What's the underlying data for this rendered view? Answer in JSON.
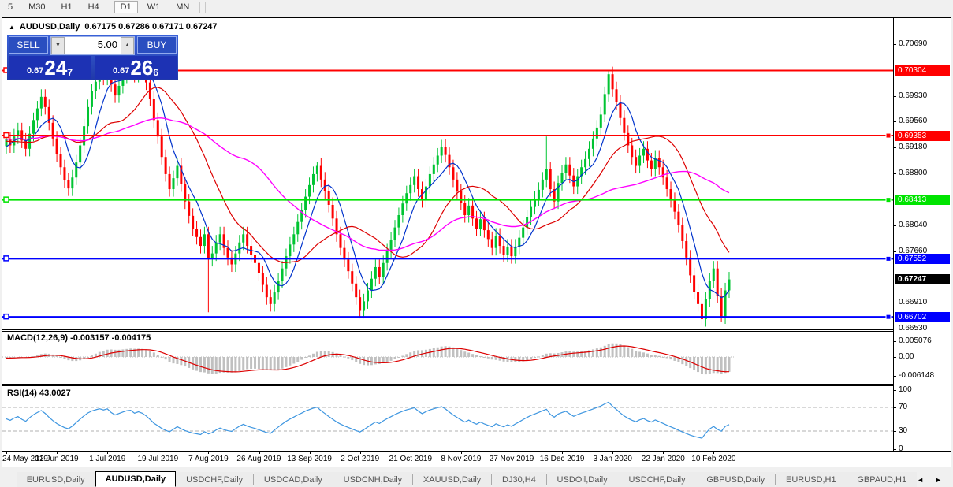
{
  "toolbar": {
    "timeframes": [
      "5",
      "M30",
      "H1",
      "H4",
      "D1",
      "W1",
      "MN"
    ],
    "active": "D1",
    "separators_after": [
      3,
      6
    ]
  },
  "chart": {
    "collapse_arrow": "▲",
    "symbol_title": "AUDUSD,Daily",
    "ohlc_text": "0.67175 0.67286 0.67171 0.67247"
  },
  "trade_panel": {
    "sell_label": "SELL",
    "buy_label": "BUY",
    "volume": "5.00",
    "spin_down_icon": "▼",
    "spin_up_icon": "▲",
    "sell_price": {
      "prefix": "0.67",
      "big": "24",
      "sup": "7"
    },
    "buy_price": {
      "prefix": "0.67",
      "big": "26",
      "sup": "6"
    }
  },
  "price_axis": {
    "ticks": [
      "0.70690",
      "0.69930",
      "0.69560",
      "0.69180",
      "0.68800",
      "0.68040",
      "0.67660",
      "0.66910",
      "0.66530"
    ],
    "current": {
      "price": 0.67247,
      "label": "0.67247",
      "bg": "#000000"
    }
  },
  "macd_panel": {
    "label": "MACD(12,26,9) -0.003157 -0.004175",
    "axis": [
      {
        "v": 0.005076,
        "label": "0.005076"
      },
      {
        "v": 0.0,
        "label": "0.00"
      },
      {
        "v": -0.006148,
        "label": "-0.006148"
      }
    ]
  },
  "rsi_panel": {
    "label": "RSI(14) 43.0027",
    "axis": [
      {
        "v": 100,
        "label": "100"
      },
      {
        "v": 70,
        "label": "70"
      },
      {
        "v": 30,
        "label": "30"
      },
      {
        "v": 0,
        "label": "0"
      }
    ],
    "dashed_levels": [
      70,
      30
    ]
  },
  "tabs": {
    "items": [
      "EURUSD,Daily",
      "AUDUSD,Daily",
      "USDCHF,Daily",
      "USDCAD,Daily",
      "USDCNH,Daily",
      "XAUUSD,Daily",
      "DJ30,H4",
      "USDOil,Daily",
      "USDCHF,Daily",
      "GBPUSD,Daily",
      "EURUSD,H1",
      "GBPAUD,H1"
    ],
    "active_index": 1,
    "scroll_left_icon": "◄",
    "scroll_right_icon": "►"
  },
  "colors": {
    "candle_up": "#00c432",
    "candle_down": "#ff0000",
    "ma_fast": "#0033cc",
    "ma_mid": "#dd0000",
    "ma_slow": "#ff00ff",
    "macd_bar": "#c0c0c0",
    "macd_signal": "#dd0000",
    "rsi_line": "#3e96e0",
    "level_red": "#ff0000",
    "level_green": "#00e400",
    "level_blue": "#0000ff"
  },
  "chart_data": {
    "type": "candlestick",
    "symbol": "AUDUSD",
    "timeframe": "Daily",
    "ohlc_readout": {
      "open": 0.67175,
      "high": 0.67286,
      "low": 0.67171,
      "close": 0.67247
    },
    "current_price": 0.67247,
    "x_axis_dates": [
      "24 May 2019",
      "12 Jun 2019",
      "1 Jul 2019",
      "19 Jul 2019",
      "7 Aug 2019",
      "26 Aug 2019",
      "13 Sep 2019",
      "2 Oct 2019",
      "21 Oct 2019",
      "8 Nov 2019",
      "27 Nov 2019",
      "16 Dec 2019",
      "3 Jan 2020",
      "22 Jan 2020",
      "10 Feb 2020"
    ],
    "y_axis_ticks": [
      0.7069,
      0.6993,
      0.6956,
      0.6918,
      0.688,
      0.6804,
      0.6766,
      0.6691,
      0.6653
    ],
    "level_lines": [
      {
        "price": 0.70304,
        "label": "0.70304",
        "color": "#ff0000",
        "right_marker": false
      },
      {
        "price": 0.69353,
        "label": "0.69353",
        "color": "#ff0000",
        "right_marker": true
      },
      {
        "price": 0.68413,
        "label": "0.68413",
        "color": "#00e400",
        "right_marker": true
      },
      {
        "price": 0.67552,
        "label": "0.67552",
        "color": "#0000ff",
        "right_marker": true
      },
      {
        "price": 0.66702,
        "label": "0.66702",
        "color": "#0000ff",
        "right_marker": true
      }
    ],
    "moving_averages": [
      {
        "period": 7,
        "color": "#0033cc"
      },
      {
        "period": 20,
        "color": "#dd0000"
      },
      {
        "period": 45,
        "color": "#ff00ff"
      }
    ],
    "macd": {
      "params": [
        12,
        26,
        9
      ],
      "value": -0.003157,
      "signal_value": -0.004175
    },
    "rsi": {
      "period": 14,
      "value": 43.0027
    },
    "pre_closes": [
      0.6938,
      0.6926,
      0.6914,
      0.6928,
      0.6941,
      0.6929,
      0.6917,
      0.693,
      0.6943,
      0.6931,
      0.6919,
      0.6932,
      0.6945,
      0.6933,
      0.6921,
      0.6934,
      0.6946,
      0.6934,
      0.6922,
      0.6935,
      0.6947,
      0.6935,
      0.6923,
      0.6936,
      0.6948,
      0.6936,
      0.6924,
      0.6937,
      0.6949,
      0.6937,
      0.6925,
      0.6938,
      0.695,
      0.6938,
      0.6926,
      0.6939,
      0.6927,
      0.6915,
      0.6903,
      0.6891,
      0.6904,
      0.6917,
      0.6929,
      0.6941,
      0.692
    ],
    "closes": [
      0.693,
      0.6921,
      0.6934,
      0.6943,
      0.6928,
      0.6916,
      0.6938,
      0.6958,
      0.6975,
      0.6992,
      0.6977,
      0.6954,
      0.6931,
      0.6908,
      0.6889,
      0.687,
      0.6858,
      0.6874,
      0.6896,
      0.6921,
      0.6949,
      0.6977,
      0.7,
      0.7014,
      0.7027,
      0.702,
      0.7033,
      0.701,
      0.6994,
      0.7008,
      0.7023,
      0.7036,
      0.7041,
      0.7024,
      0.7038,
      0.7029,
      0.7013,
      0.6989,
      0.6958,
      0.6934,
      0.6904,
      0.6879,
      0.6857,
      0.6873,
      0.6891,
      0.6864,
      0.6839,
      0.6818,
      0.6799,
      0.6787,
      0.6774,
      0.6791,
      0.6755,
      0.6763,
      0.6779,
      0.6791,
      0.6771,
      0.6757,
      0.6747,
      0.6763,
      0.6779,
      0.6791,
      0.6774,
      0.6761,
      0.6749,
      0.6734,
      0.6717,
      0.6699,
      0.6689,
      0.6706,
      0.6723,
      0.6741,
      0.6759,
      0.6776,
      0.6791,
      0.6809,
      0.6826,
      0.6846,
      0.6863,
      0.6879,
      0.6891,
      0.6871,
      0.6854,
      0.6834,
      0.6814,
      0.6791,
      0.6771,
      0.6754,
      0.6737,
      0.6719,
      0.6699,
      0.6679,
      0.6693,
      0.6709,
      0.6726,
      0.6743,
      0.6729,
      0.6749,
      0.6766,
      0.6783,
      0.6801,
      0.6819,
      0.6836,
      0.6851,
      0.6863,
      0.6876,
      0.6857,
      0.6841,
      0.6861,
      0.6879,
      0.6893,
      0.6906,
      0.6919,
      0.6907,
      0.6889,
      0.6871,
      0.6854,
      0.6837,
      0.6819,
      0.6833,
      0.6814,
      0.6799,
      0.6813,
      0.6797,
      0.6784,
      0.6771,
      0.6789,
      0.6774,
      0.6761,
      0.6773,
      0.6759,
      0.6773,
      0.6786,
      0.6801,
      0.6816,
      0.6831,
      0.6843,
      0.6856,
      0.6871,
      0.6886,
      0.6857,
      0.6839,
      0.6866,
      0.6881,
      0.6893,
      0.6877,
      0.6861,
      0.6876,
      0.6889,
      0.6901,
      0.6916,
      0.6931,
      0.6947,
      0.6966,
      0.6996,
      0.7025,
      0.7003,
      0.6984,
      0.6961,
      0.6939,
      0.6921,
      0.6904,
      0.6891,
      0.6906,
      0.6916,
      0.6899,
      0.6887,
      0.6903,
      0.6889,
      0.6874,
      0.6857,
      0.6841,
      0.6824,
      0.6804,
      0.6781,
      0.6757,
      0.6731,
      0.6707,
      0.6689,
      0.6667,
      0.6696,
      0.6723,
      0.6741,
      0.6701,
      0.6671,
      0.6709,
      0.6725
    ],
    "wick_overrides": {
      "32": {
        "high": 0.7046
      },
      "52": {
        "low": 0.6677
      },
      "80": {
        "high": 0.6897
      },
      "91": {
        "low": 0.6668
      },
      "112": {
        "high": 0.6929
      },
      "139": {
        "high": 0.6934
      },
      "155": {
        "high": 0.70304
      },
      "179": {
        "low": 0.6659
      },
      "184": {
        "low": 0.6663
      }
    }
  }
}
